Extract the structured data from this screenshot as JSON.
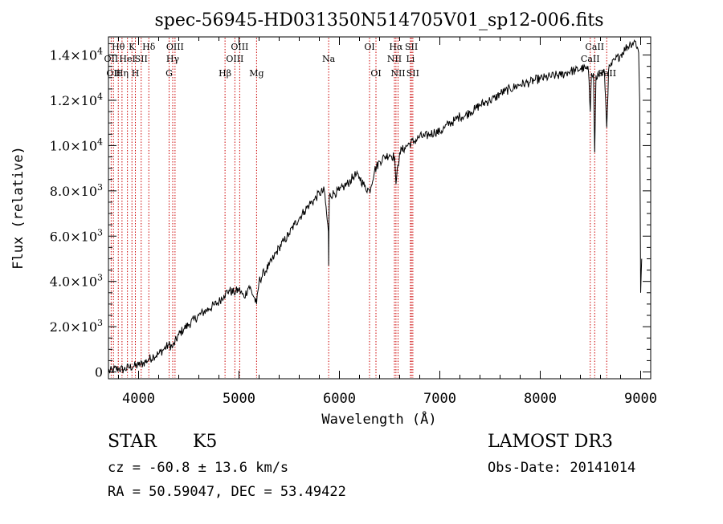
{
  "chart_data": {
    "type": "line",
    "title": "spec-56945-HD031350N514705V01_sp12-006.fits",
    "xlabel": "Wavelength (Å)",
    "ylabel": "Flux (relative)",
    "xlim": [
      3700,
      9100
    ],
    "ylim": [
      -300,
      14800
    ],
    "grid": false,
    "x_ticks": [
      {
        "value": 4000,
        "label": "4000"
      },
      {
        "value": 5000,
        "label": "5000"
      },
      {
        "value": 6000,
        "label": "6000"
      },
      {
        "value": 7000,
        "label": "7000"
      },
      {
        "value": 8000,
        "label": "8000"
      },
      {
        "value": 9000,
        "label": "9000"
      }
    ],
    "y_ticks": [
      {
        "value": 0,
        "label": "0",
        "mant": "",
        "exp": ""
      },
      {
        "value": 2000,
        "label": "2.0×10³",
        "mant": "2.0×10",
        "exp": "3"
      },
      {
        "value": 4000,
        "label": "4.0×10³",
        "mant": "4.0×10",
        "exp": "3"
      },
      {
        "value": 6000,
        "label": "6.0×10³",
        "mant": "6.0×10",
        "exp": "3"
      },
      {
        "value": 8000,
        "label": "8.0×10³",
        "mant": "8.0×10",
        "exp": "3"
      },
      {
        "value": 10000,
        "label": "1.0×10⁴",
        "mant": "1.0×10",
        "exp": "4"
      },
      {
        "value": 12000,
        "label": "1.2×10⁴",
        "mant": "1.2×10",
        "exp": "4"
      },
      {
        "value": 14000,
        "label": "1.4×10⁴",
        "mant": "1.4×10",
        "exp": "4"
      }
    ],
    "series": [
      {
        "name": "flux",
        "x": [
          3700,
          3750,
          3800,
          3850,
          3900,
          3950,
          4000,
          4050,
          4100,
          4150,
          4200,
          4250,
          4300,
          4340,
          4400,
          4450,
          4500,
          4550,
          4600,
          4650,
          4700,
          4750,
          4800,
          4850,
          4900,
          4950,
          5000,
          5050,
          5100,
          5150,
          5175,
          5200,
          5250,
          5300,
          5350,
          5400,
          5450,
          5500,
          5550,
          5600,
          5650,
          5700,
          5750,
          5800,
          5850,
          5890,
          5893,
          5896,
          5900,
          5950,
          6000,
          6050,
          6100,
          6150,
          6200,
          6250,
          6300,
          6350,
          6400,
          6450,
          6500,
          6550,
          6563,
          6600,
          6650,
          6700,
          6750,
          6800,
          6850,
          6900,
          6950,
          7000,
          7050,
          7100,
          7150,
          7200,
          7250,
          7300,
          7350,
          7400,
          7450,
          7500,
          7550,
          7600,
          7650,
          7700,
          7750,
          7800,
          7850,
          7900,
          7950,
          8000,
          8050,
          8100,
          8150,
          8200,
          8250,
          8300,
          8350,
          8400,
          8450,
          8480,
          8498,
          8510,
          8530,
          8542,
          8555,
          8580,
          8600,
          8640,
          8662,
          8680,
          8700,
          8750,
          8800,
          8850,
          8900,
          8950,
          8980,
          8990,
          9000,
          9010
        ],
        "values": [
          0,
          100,
          150,
          100,
          200,
          250,
          300,
          400,
          550,
          700,
          800,
          1000,
          1200,
          1100,
          1650,
          1900,
          2100,
          2300,
          2500,
          2650,
          2800,
          2950,
          3100,
          3400,
          3600,
          3500,
          3650,
          3300,
          3800,
          3300,
          3000,
          4000,
          4400,
          4700,
          5100,
          5500,
          5800,
          6100,
          6500,
          6800,
          7100,
          7400,
          7600,
          7900,
          8000,
          6200,
          4700,
          6600,
          7800,
          7900,
          8000,
          8200,
          8400,
          8700,
          8600,
          8200,
          8000,
          8900,
          9300,
          9500,
          9600,
          9500,
          8300,
          9700,
          9900,
          10100,
          10200,
          10400,
          10400,
          10500,
          10600,
          10600,
          10800,
          11000,
          11100,
          11300,
          11300,
          11500,
          11600,
          11800,
          11900,
          12000,
          12100,
          12300,
          12400,
          12500,
          12600,
          12700,
          12750,
          12800,
          12900,
          12950,
          13000,
          13050,
          13100,
          13100,
          13200,
          13300,
          13300,
          13400,
          13400,
          13300,
          11500,
          13200,
          13200,
          9700,
          13100,
          13100,
          13200,
          13200,
          10800,
          13300,
          13500,
          13800,
          14000,
          14300,
          14500,
          14600,
          14100,
          12000,
          3500,
          5000
        ]
      }
    ],
    "lines": [
      {
        "wl": 3727,
        "label": "OII",
        "row": 2
      },
      {
        "wl": 3750,
        "label": "OII",
        "row": 3
      },
      {
        "wl": 3798,
        "label": "Hθ",
        "row": 1
      },
      {
        "wl": 3835,
        "label": "Hη",
        "row": 3
      },
      {
        "wl": 3889,
        "label": "HeI",
        "row": 2
      },
      {
        "wl": 3934,
        "label": "K",
        "row": 1
      },
      {
        "wl": 3968,
        "label": "H",
        "row": 3
      },
      {
        "wl": 4026,
        "label": "SII",
        "row": 2
      },
      {
        "wl": 4102,
        "label": "Hδ",
        "row": 1
      },
      {
        "wl": 4304,
        "label": "G",
        "row": 3
      },
      {
        "wl": 4340,
        "label": "Hγ",
        "row": 2
      },
      {
        "wl": 4363,
        "label": "OIII",
        "row": 1
      },
      {
        "wl": 4861,
        "label": "Hβ",
        "row": 3
      },
      {
        "wl": 4959,
        "label": "OIII",
        "row": 2
      },
      {
        "wl": 5007,
        "label": "OIII",
        "row": 1
      },
      {
        "wl": 5175,
        "label": "Mg",
        "row": 3
      },
      {
        "wl": 5893,
        "label": "Na",
        "row": 2
      },
      {
        "wl": 6300,
        "label": "OI",
        "row": 1
      },
      {
        "wl": 6364,
        "label": "OI",
        "row": 3
      },
      {
        "wl": 6548,
        "label": "NII",
        "row": 2
      },
      {
        "wl": 6563,
        "label": "Hα",
        "row": 1
      },
      {
        "wl": 6584,
        "label": "NII",
        "row": 3
      },
      {
        "wl": 6707,
        "label": "Li",
        "row": 2
      },
      {
        "wl": 6717,
        "label": "SII",
        "row": 1
      },
      {
        "wl": 6731,
        "label": "SII",
        "row": 3
      },
      {
        "wl": 8498,
        "label": "CaII",
        "row": 2
      },
      {
        "wl": 8542,
        "label": "CaII",
        "row": 1
      },
      {
        "wl": 8662,
        "label": "CaII",
        "row": 3
      }
    ]
  },
  "info": {
    "class_label": "STAR",
    "subclass": "K5",
    "survey": "LAMOST DR3",
    "redshift": "cz = -60.8 ± 13.6 km/s",
    "obs_date": "Obs-Date: 20141014",
    "coords": "RA =  50.59047, DEC =  53.49422"
  },
  "colors": {
    "axis": "#000000",
    "spectrum": "#000000",
    "line_marker": "#cc0000",
    "background": "#ffffff"
  }
}
